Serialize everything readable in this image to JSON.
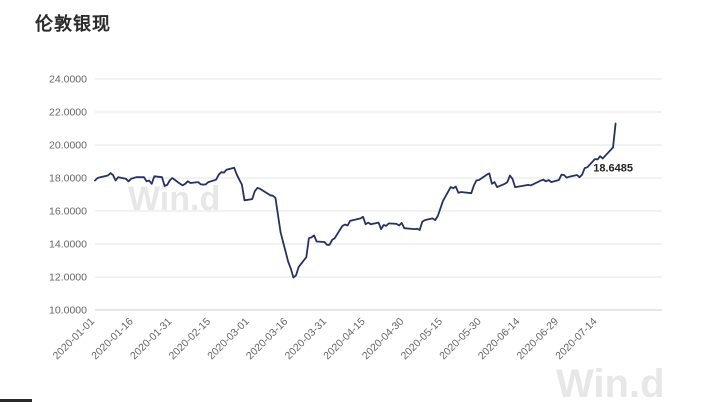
{
  "page": {
    "title": "伦敦银现"
  },
  "watermarks": {
    "mid": "Win.d",
    "bottom": "Win.d"
  },
  "chart_data": {
    "type": "line",
    "title": "伦敦银现",
    "line_color": "#26325f",
    "grid_color": "#e6e6e6",
    "axis_color": "#cccccc",
    "tick_text_color": "#666666",
    "ylim": [
      10,
      24
    ],
    "ytick_step": 2,
    "ytick_labels": [
      "10.0000",
      "12.0000",
      "14.0000",
      "16.0000",
      "18.0000",
      "20.0000",
      "22.0000",
      "24.0000"
    ],
    "x_ticks": [
      "2020-01-01",
      "2020-01-16",
      "2020-01-31",
      "2020-02-15",
      "2020-03-01",
      "2020-03-16",
      "2020-03-31",
      "2020-04-15",
      "2020-04-30",
      "2020-05-15",
      "2020-05-30",
      "2020-06-14",
      "2020-06-29",
      "2020-07-14"
    ],
    "x_range": [
      "2020-01-01",
      "2020-08-08"
    ],
    "legend_position": "none",
    "grid": "horizontal",
    "annotation": {
      "date": "2020-07-10",
      "value": 18.6485,
      "text": "18.6485"
    },
    "series": [
      {
        "name": "伦敦银现",
        "points": [
          [
            "2020-01-01",
            17.85
          ],
          [
            "2020-01-02",
            18.0
          ],
          [
            "2020-01-03",
            18.05
          ],
          [
            "2020-01-06",
            18.15
          ],
          [
            "2020-01-07",
            18.3
          ],
          [
            "2020-01-08",
            18.18
          ],
          [
            "2020-01-09",
            17.85
          ],
          [
            "2020-01-10",
            18.05
          ],
          [
            "2020-01-13",
            17.95
          ],
          [
            "2020-01-14",
            17.8
          ],
          [
            "2020-01-15",
            17.95
          ],
          [
            "2020-01-16",
            18.0
          ],
          [
            "2020-01-17",
            18.05
          ],
          [
            "2020-01-20",
            18.05
          ],
          [
            "2020-01-21",
            17.8
          ],
          [
            "2020-01-22",
            17.85
          ],
          [
            "2020-01-23",
            17.65
          ],
          [
            "2020-01-24",
            18.1
          ],
          [
            "2020-01-27",
            18.05
          ],
          [
            "2020-01-28",
            17.52
          ],
          [
            "2020-01-29",
            17.58
          ],
          [
            "2020-01-30",
            17.85
          ],
          [
            "2020-01-31",
            18.0
          ],
          [
            "2020-02-03",
            17.65
          ],
          [
            "2020-02-04",
            17.55
          ],
          [
            "2020-02-05",
            17.65
          ],
          [
            "2020-02-06",
            17.8
          ],
          [
            "2020-02-07",
            17.7
          ],
          [
            "2020-02-10",
            17.75
          ],
          [
            "2020-02-11",
            17.62
          ],
          [
            "2020-02-12",
            17.6
          ],
          [
            "2020-02-13",
            17.62
          ],
          [
            "2020-02-14",
            17.75
          ],
          [
            "2020-02-17",
            17.9
          ],
          [
            "2020-02-18",
            18.2
          ],
          [
            "2020-02-19",
            18.35
          ],
          [
            "2020-02-20",
            18.33
          ],
          [
            "2020-02-21",
            18.5
          ],
          [
            "2020-02-24",
            18.62
          ],
          [
            "2020-02-25",
            18.2
          ],
          [
            "2020-02-26",
            17.9
          ],
          [
            "2020-02-27",
            17.6
          ],
          [
            "2020-02-28",
            16.65
          ],
          [
            "2020-03-02",
            16.72
          ],
          [
            "2020-03-03",
            17.2
          ],
          [
            "2020-03-04",
            17.4
          ],
          [
            "2020-03-05",
            17.35
          ],
          [
            "2020-03-06",
            17.25
          ],
          [
            "2020-03-09",
            16.95
          ],
          [
            "2020-03-10",
            16.93
          ],
          [
            "2020-03-11",
            16.8
          ],
          [
            "2020-03-12",
            15.75
          ],
          [
            "2020-03-13",
            14.7
          ],
          [
            "2020-03-16",
            12.9
          ],
          [
            "2020-03-17",
            12.5
          ],
          [
            "2020-03-18",
            11.97
          ],
          [
            "2020-03-19",
            12.1
          ],
          [
            "2020-03-20",
            12.6
          ],
          [
            "2020-03-23",
            13.2
          ],
          [
            "2020-03-24",
            14.35
          ],
          [
            "2020-03-25",
            14.4
          ],
          [
            "2020-03-26",
            14.52
          ],
          [
            "2020-03-27",
            14.15
          ],
          [
            "2020-03-30",
            14.12
          ],
          [
            "2020-03-31",
            13.95
          ],
          [
            "2020-04-01",
            13.95
          ],
          [
            "2020-04-02",
            14.25
          ],
          [
            "2020-04-03",
            14.35
          ],
          [
            "2020-04-06",
            15.1
          ],
          [
            "2020-04-07",
            15.18
          ],
          [
            "2020-04-08",
            15.12
          ],
          [
            "2020-04-09",
            15.4
          ],
          [
            "2020-04-13",
            15.55
          ],
          [
            "2020-04-14",
            15.65
          ],
          [
            "2020-04-15",
            15.2
          ],
          [
            "2020-04-16",
            15.3
          ],
          [
            "2020-04-17",
            15.2
          ],
          [
            "2020-04-20",
            15.3
          ],
          [
            "2020-04-21",
            14.9
          ],
          [
            "2020-04-22",
            15.15
          ],
          [
            "2020-04-23",
            15.1
          ],
          [
            "2020-04-24",
            15.25
          ],
          [
            "2020-04-27",
            15.22
          ],
          [
            "2020-04-28",
            15.12
          ],
          [
            "2020-04-29",
            15.28
          ],
          [
            "2020-04-30",
            14.96
          ],
          [
            "2020-05-04",
            14.9
          ],
          [
            "2020-05-05",
            14.92
          ],
          [
            "2020-05-06",
            14.85
          ],
          [
            "2020-05-07",
            15.35
          ],
          [
            "2020-05-08",
            15.45
          ],
          [
            "2020-05-11",
            15.55
          ],
          [
            "2020-05-12",
            15.45
          ],
          [
            "2020-05-13",
            15.7
          ],
          [
            "2020-05-14",
            16.15
          ],
          [
            "2020-05-15",
            16.6
          ],
          [
            "2020-05-18",
            17.45
          ],
          [
            "2020-05-19",
            17.38
          ],
          [
            "2020-05-20",
            17.48
          ],
          [
            "2020-05-21",
            17.1
          ],
          [
            "2020-05-22",
            17.15
          ],
          [
            "2020-05-26",
            17.08
          ],
          [
            "2020-05-27",
            17.55
          ],
          [
            "2020-05-28",
            17.85
          ],
          [
            "2020-05-29",
            17.88
          ],
          [
            "2020-06-01",
            18.2
          ],
          [
            "2020-06-02",
            18.28
          ],
          [
            "2020-06-03",
            17.65
          ],
          [
            "2020-06-04",
            17.75
          ],
          [
            "2020-06-05",
            17.45
          ],
          [
            "2020-06-08",
            17.65
          ],
          [
            "2020-06-09",
            17.75
          ],
          [
            "2020-06-10",
            18.15
          ],
          [
            "2020-06-11",
            17.95
          ],
          [
            "2020-06-12",
            17.45
          ],
          [
            "2020-06-15",
            17.52
          ],
          [
            "2020-06-16",
            17.55
          ],
          [
            "2020-06-17",
            17.58
          ],
          [
            "2020-06-18",
            17.55
          ],
          [
            "2020-06-19",
            17.62
          ],
          [
            "2020-06-22",
            17.85
          ],
          [
            "2020-06-23",
            17.9
          ],
          [
            "2020-06-24",
            17.8
          ],
          [
            "2020-06-25",
            17.88
          ],
          [
            "2020-06-26",
            17.75
          ],
          [
            "2020-06-29",
            17.88
          ],
          [
            "2020-06-30",
            18.2
          ],
          [
            "2020-07-01",
            18.18
          ],
          [
            "2020-07-02",
            18.02
          ],
          [
            "2020-07-03",
            18.08
          ],
          [
            "2020-07-06",
            18.18
          ],
          [
            "2020-07-07",
            18.05
          ],
          [
            "2020-07-08",
            18.2
          ],
          [
            "2020-07-09",
            18.6
          ],
          [
            "2020-07-10",
            18.6485
          ],
          [
            "2020-07-13",
            19.15
          ],
          [
            "2020-07-14",
            19.12
          ],
          [
            "2020-07-15",
            19.32
          ],
          [
            "2020-07-16",
            19.18
          ],
          [
            "2020-07-17",
            19.35
          ],
          [
            "2020-07-20",
            19.85
          ],
          [
            "2020-07-21",
            21.3
          ]
        ]
      }
    ]
  }
}
